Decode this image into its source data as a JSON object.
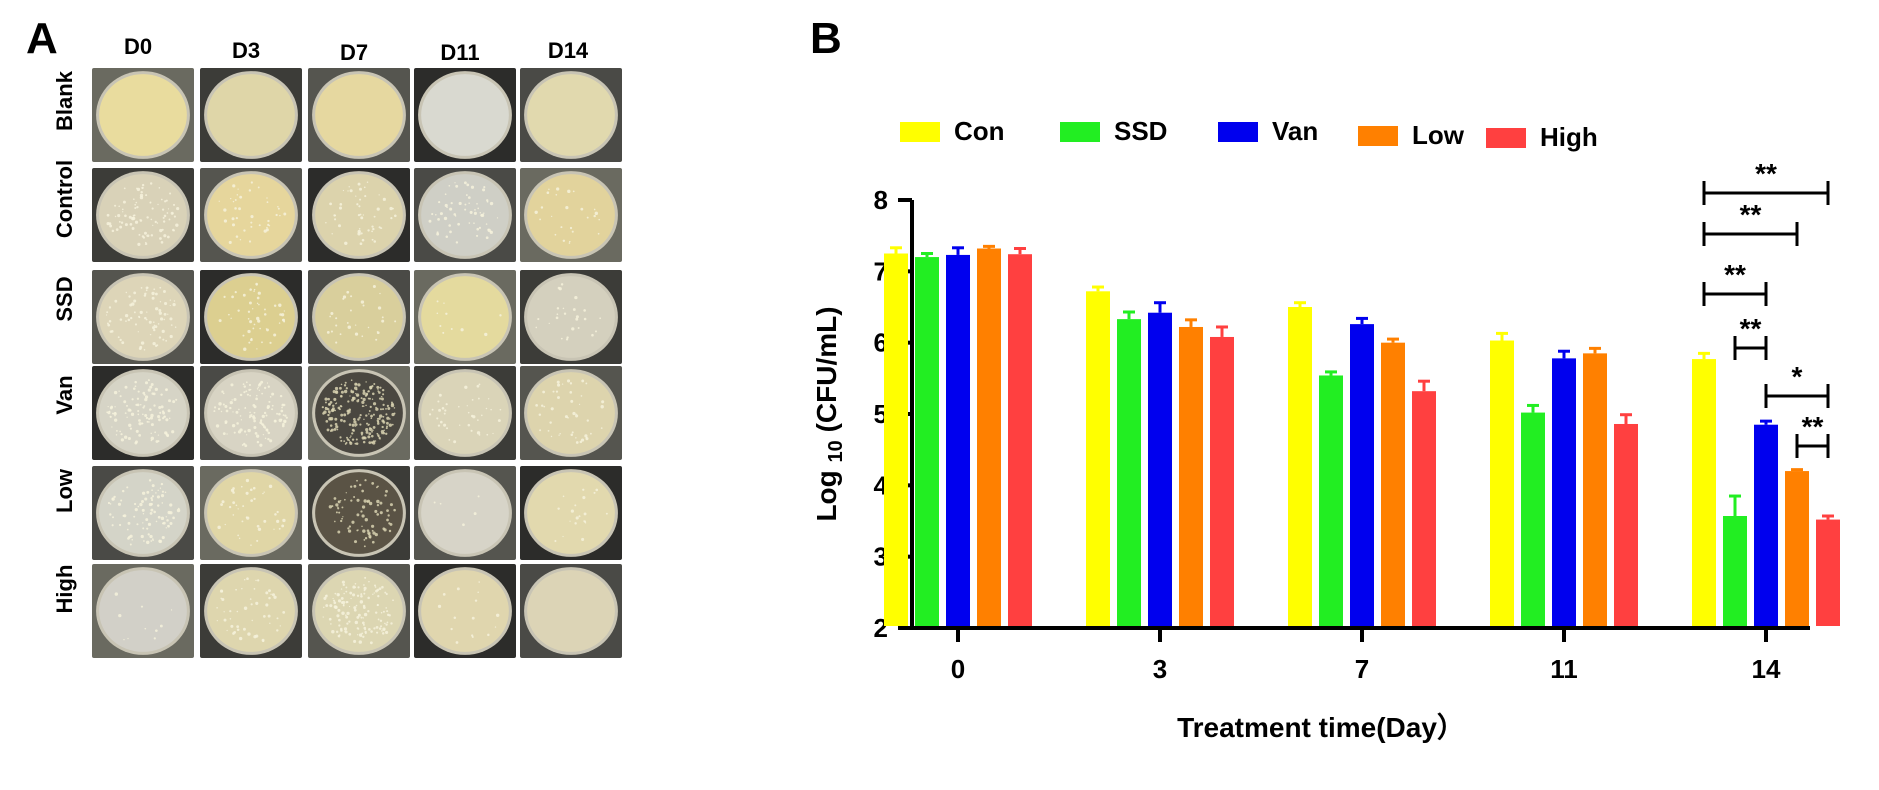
{
  "panel_a": {
    "letter": "A",
    "columns": [
      "D0",
      "D3",
      "D7",
      "D11",
      "D14"
    ],
    "rows": [
      "Blank",
      "Control",
      "SSD",
      "Van",
      "Low",
      "High"
    ]
  },
  "panel_b": {
    "letter": "B"
  },
  "colors": {
    "Con": "#ffff00",
    "SSD": "#22ee22",
    "Van": "#0000ee",
    "Low": "#ff8000",
    "High": "#ff4040"
  },
  "chart_data": {
    "type": "bar",
    "title": "",
    "xlabel": "Treatment time(Day）",
    "ylabel_main": "Log",
    "ylabel_sub": "10",
    "ylabel_rest": "(CFU/mL)",
    "ylim": [
      2,
      8
    ],
    "yticks": [
      "2",
      "3",
      "4",
      "5",
      "6",
      "7",
      "8"
    ],
    "categories": [
      "0",
      "3",
      "7",
      "11",
      "14"
    ],
    "legend_position": "top",
    "series": [
      {
        "name": "Con",
        "values": [
          7.25,
          6.72,
          6.5,
          6.03,
          5.77
        ],
        "errors": [
          0.08,
          0.06,
          0.06,
          0.1,
          0.08
        ]
      },
      {
        "name": "SSD",
        "values": [
          7.2,
          6.33,
          5.54,
          5.02,
          3.57
        ],
        "errors": [
          0.05,
          0.1,
          0.05,
          0.1,
          0.28
        ]
      },
      {
        "name": "Van",
        "values": [
          7.23,
          6.42,
          6.26,
          5.78,
          4.85
        ],
        "errors": [
          0.1,
          0.14,
          0.08,
          0.1,
          0.05
        ]
      },
      {
        "name": "Low",
        "values": [
          7.32,
          6.22,
          6.0,
          5.85,
          4.2
        ],
        "errors": [
          0.03,
          0.1,
          0.05,
          0.07,
          0.02
        ]
      },
      {
        "name": "High",
        "values": [
          7.24,
          6.08,
          5.32,
          4.86,
          3.52
        ],
        "errors": [
          0.08,
          0.14,
          0.14,
          0.13,
          0.05
        ]
      }
    ],
    "significance": [
      {
        "from": "Con",
        "to": "High",
        "day": "14",
        "label": "**"
      },
      {
        "from": "Con",
        "to": "Low",
        "day": "14",
        "label": "**"
      },
      {
        "from": "Con",
        "to": "Van",
        "day": "14",
        "label": "**"
      },
      {
        "from": "SSD",
        "to": "Van",
        "day": "14",
        "label": "**"
      },
      {
        "from": "Van",
        "to": "High",
        "day": "14",
        "label": "*"
      },
      {
        "from": "Low",
        "to": "High",
        "day": "14",
        "label": "**"
      }
    ]
  }
}
